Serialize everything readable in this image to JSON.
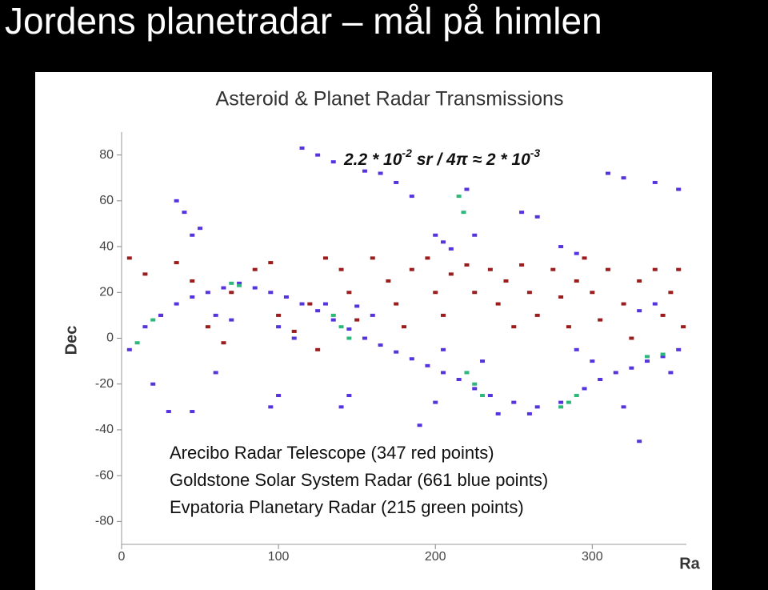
{
  "slide_title": "Jordens planetradar – mål på himlen",
  "chart_data": {
    "type": "scatter",
    "title": "Asteroid & Planet Radar Transmissions",
    "annotation": [
      "2.2 * 10",
      "-2",
      " sr / 4π ≈ 2 * 10",
      "-3"
    ],
    "x_label": "Ra",
    "y_label": "Dec",
    "xlim": [
      0,
      360
    ],
    "ylim": [
      -90,
      90
    ],
    "xticks": [
      0,
      100,
      200,
      300
    ],
    "yticks": [
      -80,
      -60,
      -40,
      -20,
      0,
      20,
      40,
      60,
      80
    ],
    "series": [
      {
        "name": "Arecibo Radar Telescope (347 red points)",
        "color": "#9b1c1c",
        "x": [
          5,
          15,
          25,
          35,
          45,
          55,
          65,
          70,
          85,
          95,
          100,
          110,
          120,
          125,
          130,
          140,
          145,
          150,
          160,
          170,
          175,
          180,
          185,
          195,
          200,
          205,
          210,
          220,
          225,
          235,
          240,
          245,
          250,
          255,
          260,
          265,
          275,
          280,
          285,
          290,
          295,
          300,
          305,
          310,
          320,
          325,
          330,
          340,
          345,
          350,
          355,
          358
        ],
        "y": [
          35,
          28,
          10,
          33,
          25,
          5,
          -2,
          20,
          30,
          33,
          10,
          3,
          15,
          -5,
          35,
          30,
          20,
          8,
          35,
          25,
          15,
          5,
          30,
          35,
          20,
          10,
          28,
          32,
          20,
          30,
          15,
          25,
          5,
          32,
          20,
          10,
          30,
          18,
          5,
          25,
          35,
          20,
          8,
          30,
          15,
          0,
          25,
          30,
          10,
          20,
          30,
          5
        ]
      },
      {
        "name": "Goldstone Solar System Radar (661 blue points)",
        "color": "#5533dd",
        "x": [
          5,
          15,
          25,
          35,
          45,
          55,
          65,
          75,
          85,
          95,
          105,
          115,
          125,
          135,
          145,
          155,
          165,
          175,
          185,
          195,
          205,
          215,
          225,
          235,
          250,
          265,
          280,
          295,
          305,
          315,
          325,
          335,
          345,
          355,
          115,
          125,
          135,
          155,
          165,
          175,
          185,
          200,
          205,
          210,
          220,
          225,
          35,
          40,
          45,
          50,
          255,
          265,
          280,
          290,
          310,
          320,
          340,
          355,
          20,
          30,
          45,
          60,
          95,
          100,
          140,
          145,
          190,
          200,
          240,
          260,
          320,
          330,
          350,
          150,
          160,
          60,
          70,
          100,
          110,
          130,
          205,
          230,
          290,
          300,
          330,
          340
        ],
        "y": [
          -5,
          5,
          10,
          15,
          18,
          20,
          22,
          24,
          22,
          20,
          18,
          15,
          12,
          8,
          4,
          0,
          -3,
          -6,
          -9,
          -12,
          -15,
          -18,
          -22,
          -25,
          -28,
          -30,
          -28,
          -22,
          -18,
          -15,
          -13,
          -10,
          -8,
          -5,
          83,
          80,
          77,
          73,
          72,
          68,
          62,
          45,
          42,
          39,
          65,
          45,
          60,
          55,
          45,
          48,
          55,
          53,
          40,
          37,
          72,
          70,
          68,
          65,
          -20,
          -32,
          -32,
          -15,
          -30,
          -25,
          -30,
          -25,
          -38,
          -28,
          -33,
          -33,
          -30,
          -45,
          -15,
          14,
          10,
          10,
          8,
          5,
          0,
          15,
          -5,
          -10,
          -5,
          -10,
          12,
          15
        ]
      },
      {
        "name": "Evpatoria Planetary Radar (215 green points)",
        "color": "#2db87a",
        "x": [
          10,
          20,
          70,
          75,
          135,
          140,
          145,
          215,
          218,
          220,
          225,
          230,
          280,
          285,
          290,
          335,
          345
        ],
        "y": [
          -2,
          8,
          24,
          23,
          10,
          5,
          0,
          62,
          55,
          -15,
          -20,
          -25,
          -30,
          -28,
          -25,
          -8,
          -7
        ]
      }
    ]
  }
}
